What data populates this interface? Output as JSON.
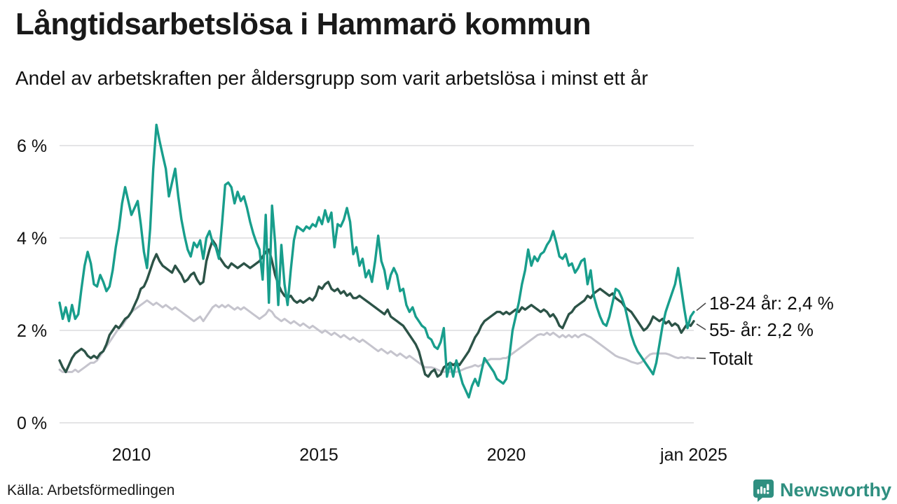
{
  "header": {
    "title": "Långtidsarbetslösa i Hammarö kommun",
    "subtitle": "Andel av arbetskraften per åldersgrupp som varit arbetslösa i minst ett år"
  },
  "footer": {
    "source": "Källa: Arbetsförmedlingen",
    "brand": "Newsworthy"
  },
  "colors": {
    "series_18_24": "#189E8C",
    "series_55": "#2C5347",
    "series_total": "#C5C4CD",
    "grid": "#E4E4E6",
    "axis_text": "#111111",
    "annotation_connector": "#4a4a4a",
    "brand_teal": "#2F8F80"
  },
  "chart_data": {
    "type": "line",
    "title": "Långtidsarbetslösa i Hammarö kommun",
    "subtitle": "Andel av arbetskraften per åldersgrupp som varit arbetslösa i minst ett år",
    "unit": "% av arbetskraften",
    "x_start": "2008-02",
    "x_end": "2025-01",
    "x_frequency": "monthly",
    "grid": true,
    "legend_position": "end-of-line-labels",
    "ylim": [
      0,
      6.6
    ],
    "y_ticks": [
      {
        "label": "0 %",
        "value": 0
      },
      {
        "label": "2 %",
        "value": 2
      },
      {
        "label": "4 %",
        "value": 4
      },
      {
        "label": "6 %",
        "value": 6
      }
    ],
    "x_ticks": [
      {
        "label": "2010",
        "t": 23
      },
      {
        "label": "2015",
        "t": 83
      },
      {
        "label": "2020",
        "t": 143
      },
      {
        "label": "jan 2025",
        "t": 203
      }
    ],
    "series": [
      {
        "name": "18-24 år",
        "end_label": "18-24 år: 2,4 %",
        "last_value_label": "2,4 %",
        "color": "#189E8C",
        "width": 3.4,
        "values": [
          2.6,
          2.25,
          2.5,
          2.2,
          2.55,
          2.25,
          2.35,
          2.9,
          3.4,
          3.7,
          3.45,
          3.0,
          2.95,
          3.2,
          3.05,
          2.85,
          2.95,
          3.3,
          3.8,
          4.2,
          4.75,
          5.1,
          4.8,
          4.5,
          4.65,
          4.8,
          4.3,
          3.7,
          3.35,
          4.2,
          5.5,
          6.45,
          6.1,
          5.8,
          5.5,
          4.9,
          5.2,
          5.5,
          4.9,
          4.4,
          4.05,
          3.75,
          3.6,
          3.9,
          3.8,
          3.95,
          3.55,
          4.0,
          4.15,
          3.9,
          3.8,
          3.55,
          4.3,
          5.15,
          5.2,
          5.1,
          4.75,
          5.0,
          4.8,
          4.9,
          4.65,
          4.35,
          4.1,
          3.9,
          3.75,
          3.1,
          4.5,
          2.6,
          4.7,
          3.9,
          2.55,
          3.85,
          3.0,
          2.55,
          3.3,
          3.95,
          4.25,
          4.2,
          4.15,
          4.25,
          4.2,
          4.3,
          4.25,
          4.45,
          4.3,
          4.6,
          4.35,
          4.55,
          3.8,
          4.3,
          4.25,
          4.4,
          4.65,
          4.35,
          3.65,
          3.8,
          3.4,
          3.55,
          3.15,
          3.3,
          3.05,
          3.5,
          4.05,
          3.5,
          3.3,
          2.9,
          3.2,
          3.35,
          3.2,
          2.85,
          2.9,
          2.55,
          2.4,
          2.5,
          2.3,
          2.2,
          2.1,
          2.05,
          1.85,
          1.8,
          1.65,
          1.6,
          1.75,
          2.05,
          1.0,
          1.3,
          1.0,
          1.35,
          1.1,
          0.85,
          0.7,
          0.55,
          0.8,
          0.95,
          0.8,
          1.1,
          1.4,
          1.3,
          1.2,
          1.1,
          0.95,
          0.9,
          0.85,
          0.95,
          1.45,
          2.0,
          2.3,
          2.6,
          3.0,
          3.3,
          3.75,
          3.4,
          3.6,
          3.5,
          3.65,
          3.7,
          3.85,
          3.95,
          4.15,
          3.9,
          3.6,
          3.55,
          3.65,
          3.4,
          3.45,
          3.25,
          3.35,
          3.5,
          3.55,
          3.0,
          3.3,
          2.75,
          2.5,
          2.3,
          2.15,
          2.1,
          2.3,
          2.6,
          2.9,
          2.85,
          2.7,
          2.5,
          2.2,
          1.9,
          1.7,
          1.55,
          1.45,
          1.35,
          1.25,
          1.15,
          1.05,
          1.3,
          1.7,
          2.1,
          2.4,
          2.6,
          2.8,
          3.0,
          3.35,
          2.9,
          2.45,
          2.05,
          2.3,
          2.4
        ]
      },
      {
        "name": "55- år",
        "end_label": "55- år: 2,2 %",
        "last_value_label": "2,2 %",
        "color": "#2C5347",
        "width": 3.4,
        "values": [
          1.35,
          1.2,
          1.1,
          1.25,
          1.4,
          1.5,
          1.55,
          1.6,
          1.55,
          1.45,
          1.4,
          1.45,
          1.4,
          1.5,
          1.55,
          1.7,
          1.9,
          2.0,
          2.1,
          2.05,
          2.15,
          2.25,
          2.3,
          2.4,
          2.55,
          2.7,
          2.9,
          2.95,
          3.1,
          3.3,
          3.5,
          3.65,
          3.5,
          3.4,
          3.35,
          3.3,
          3.25,
          3.4,
          3.3,
          3.2,
          3.05,
          3.1,
          3.2,
          3.25,
          3.1,
          3.0,
          3.05,
          3.5,
          3.75,
          3.95,
          3.85,
          3.6,
          3.5,
          3.4,
          3.35,
          3.45,
          3.4,
          3.35,
          3.4,
          3.45,
          3.4,
          3.35,
          3.4,
          3.45,
          3.5,
          3.6,
          3.7,
          3.75,
          3.5,
          3.2,
          3.0,
          2.85,
          2.75,
          2.7,
          2.75,
          2.65,
          2.6,
          2.65,
          2.6,
          2.65,
          2.7,
          2.65,
          2.75,
          2.95,
          2.9,
          3.0,
          3.05,
          2.9,
          2.85,
          2.9,
          2.8,
          2.85,
          2.75,
          2.8,
          2.7,
          2.7,
          2.75,
          2.7,
          2.65,
          2.6,
          2.55,
          2.5,
          2.45,
          2.4,
          2.35,
          2.45,
          2.3,
          2.25,
          2.2,
          2.15,
          2.1,
          2.0,
          1.9,
          1.8,
          1.7,
          1.55,
          1.3,
          1.05,
          1.0,
          1.1,
          1.15,
          1.0,
          1.05,
          1.2,
          1.25,
          1.3,
          1.25,
          1.3,
          1.25,
          1.35,
          1.45,
          1.55,
          1.7,
          1.85,
          1.95,
          2.1,
          2.2,
          2.25,
          2.3,
          2.35,
          2.4,
          2.4,
          2.35,
          2.4,
          2.35,
          2.4,
          2.45,
          2.4,
          2.5,
          2.45,
          2.5,
          2.55,
          2.5,
          2.45,
          2.4,
          2.45,
          2.4,
          2.3,
          2.35,
          2.25,
          2.1,
          2.05,
          2.2,
          2.35,
          2.4,
          2.5,
          2.55,
          2.6,
          2.65,
          2.75,
          2.7,
          2.8,
          2.85,
          2.9,
          2.85,
          2.8,
          2.75,
          2.8,
          2.7,
          2.65,
          2.6,
          2.5,
          2.45,
          2.4,
          2.3,
          2.2,
          2.1,
          2.0,
          2.05,
          2.15,
          2.3,
          2.25,
          2.2,
          2.25,
          2.15,
          2.2,
          2.1,
          2.15,
          2.1,
          1.95,
          2.05,
          2.15,
          2.1,
          2.2
        ]
      },
      {
        "name": "Totalt",
        "end_label": "Totalt",
        "last_value_label": "",
        "color": "#C5C4CD",
        "width": 3.0,
        "values": [
          1.15,
          1.1,
          1.1,
          1.1,
          1.1,
          1.15,
          1.1,
          1.15,
          1.2,
          1.25,
          1.3,
          1.3,
          1.35,
          1.45,
          1.55,
          1.65,
          1.75,
          1.85,
          1.95,
          2.05,
          2.1,
          2.2,
          2.3,
          2.4,
          2.45,
          2.5,
          2.55,
          2.6,
          2.65,
          2.6,
          2.55,
          2.6,
          2.55,
          2.5,
          2.55,
          2.5,
          2.45,
          2.5,
          2.45,
          2.4,
          2.35,
          2.3,
          2.25,
          2.2,
          2.25,
          2.3,
          2.2,
          2.3,
          2.4,
          2.5,
          2.55,
          2.5,
          2.55,
          2.5,
          2.55,
          2.5,
          2.45,
          2.5,
          2.45,
          2.5,
          2.45,
          2.4,
          2.35,
          2.3,
          2.25,
          2.3,
          2.35,
          2.45,
          2.4,
          2.3,
          2.25,
          2.2,
          2.25,
          2.2,
          2.15,
          2.2,
          2.15,
          2.1,
          2.15,
          2.1,
          2.05,
          2.1,
          2.05,
          2.0,
          1.95,
          2.0,
          1.95,
          1.9,
          1.95,
          1.9,
          1.85,
          1.9,
          1.85,
          1.8,
          1.85,
          1.8,
          1.75,
          1.8,
          1.75,
          1.7,
          1.65,
          1.6,
          1.55,
          1.6,
          1.55,
          1.5,
          1.55,
          1.5,
          1.45,
          1.5,
          1.45,
          1.4,
          1.45,
          1.4,
          1.35,
          1.3,
          1.25,
          1.2,
          1.2,
          1.2,
          1.18,
          1.15,
          1.12,
          1.1,
          1.12,
          1.1,
          1.12,
          1.1,
          1.12,
          1.15,
          1.18,
          1.2,
          1.22,
          1.25,
          1.22,
          1.25,
          1.3,
          1.35,
          1.38,
          1.38,
          1.38,
          1.38,
          1.4,
          1.4,
          1.45,
          1.5,
          1.55,
          1.6,
          1.65,
          1.7,
          1.75,
          1.8,
          1.85,
          1.9,
          1.92,
          1.9,
          1.95,
          1.9,
          1.95,
          1.9,
          1.85,
          1.9,
          1.85,
          1.9,
          1.85,
          1.9,
          1.85,
          1.9,
          1.92,
          1.88,
          1.85,
          1.8,
          1.75,
          1.7,
          1.65,
          1.6,
          1.55,
          1.5,
          1.45,
          1.42,
          1.4,
          1.38,
          1.35,
          1.32,
          1.3,
          1.28,
          1.3,
          1.35,
          1.42,
          1.48,
          1.5,
          1.5,
          1.5,
          1.5,
          1.5,
          1.48,
          1.45,
          1.42,
          1.4,
          1.42,
          1.4,
          1.42,
          1.4,
          1.4
        ]
      }
    ]
  }
}
